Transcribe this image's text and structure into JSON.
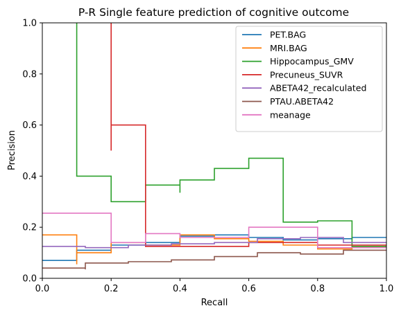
{
  "chart_data": {
    "type": "line",
    "title": "P-R Single feature prediction of cognitive outcome",
    "xlabel": "Recall",
    "ylabel": "Precision",
    "xlim": [
      0,
      1
    ],
    "ylim": [
      0,
      1
    ],
    "xticks": [
      "0.0",
      "0.2",
      "0.4",
      "0.6",
      "0.8",
      "1.0"
    ],
    "yticks": [
      "0.0",
      "0.2",
      "0.4",
      "0.6",
      "0.8",
      "1.0"
    ],
    "grid": false,
    "legend_position": "top-right",
    "drawstyle": "steps-post",
    "series": [
      {
        "name": "PET.BAG",
        "color": "#1f77b4",
        "points": [
          [
            1.0,
            0.16
          ],
          [
            0.9,
            0.16
          ],
          [
            0.9,
            0.155
          ],
          [
            0.8,
            0.155
          ],
          [
            0.8,
            0.15
          ],
          [
            0.7,
            0.15
          ],
          [
            0.7,
            0.16
          ],
          [
            0.6,
            0.16
          ],
          [
            0.6,
            0.17
          ],
          [
            0.5,
            0.17
          ],
          [
            0.5,
            0.165
          ],
          [
            0.4,
            0.165
          ],
          [
            0.4,
            0.14
          ],
          [
            0.3,
            0.14
          ],
          [
            0.3,
            0.13
          ],
          [
            0.2,
            0.13
          ],
          [
            0.2,
            0.11
          ],
          [
            0.1,
            0.11
          ],
          [
            0.1,
            0.07
          ],
          [
            0.0,
            0.07
          ]
        ]
      },
      {
        "name": "MRI.BAG",
        "color": "#ff7f0e",
        "points": [
          [
            1.0,
            0.125
          ],
          [
            0.9,
            0.125
          ],
          [
            0.9,
            0.115
          ],
          [
            0.8,
            0.115
          ],
          [
            0.8,
            0.13
          ],
          [
            0.7,
            0.13
          ],
          [
            0.7,
            0.145
          ],
          [
            0.6,
            0.145
          ],
          [
            0.6,
            0.155
          ],
          [
            0.5,
            0.155
          ],
          [
            0.5,
            0.17
          ],
          [
            0.4,
            0.17
          ],
          [
            0.4,
            0.13
          ],
          [
            0.3,
            0.13
          ],
          [
            0.3,
            0.14
          ],
          [
            0.2,
            0.14
          ],
          [
            0.2,
            0.1
          ],
          [
            0.1,
            0.1
          ],
          [
            0.1,
            0.055
          ],
          [
            0.1,
            0.17
          ],
          [
            0.0,
            0.17
          ]
        ]
      },
      {
        "name": "Hippocampus_GMV",
        "color": "#2ca02c",
        "points": [
          [
            1.0,
            0.125
          ],
          [
            0.9,
            0.125
          ],
          [
            0.9,
            0.225
          ],
          [
            0.8,
            0.225
          ],
          [
            0.8,
            0.22
          ],
          [
            0.7,
            0.22
          ],
          [
            0.7,
            0.47
          ],
          [
            0.6,
            0.47
          ],
          [
            0.6,
            0.43
          ],
          [
            0.5,
            0.43
          ],
          [
            0.5,
            0.385
          ],
          [
            0.4,
            0.385
          ],
          [
            0.4,
            0.335
          ],
          [
            0.4,
            0.365
          ],
          [
            0.3,
            0.365
          ],
          [
            0.3,
            0.3
          ],
          [
            0.2,
            0.3
          ],
          [
            0.2,
            0.4
          ],
          [
            0.1,
            0.4
          ],
          [
            0.1,
            1.0
          ]
        ]
      },
      {
        "name": "Precuneus_SUVR",
        "color": "#d62728",
        "points": [
          [
            1.0,
            0.13
          ],
          [
            0.8,
            0.13
          ],
          [
            0.8,
            0.14
          ],
          [
            0.6,
            0.14
          ],
          [
            0.6,
            0.125
          ],
          [
            0.3,
            0.125
          ],
          [
            0.3,
            0.6
          ],
          [
            0.2,
            0.6
          ],
          [
            0.2,
            0.5
          ],
          [
            0.2,
            1.0
          ]
        ]
      },
      {
        "name": "ABETA42_recalculated",
        "color": "#9467bd",
        "points": [
          [
            1.0,
            0.14
          ],
          [
            0.875,
            0.14
          ],
          [
            0.875,
            0.16
          ],
          [
            0.75,
            0.16
          ],
          [
            0.75,
            0.155
          ],
          [
            0.625,
            0.155
          ],
          [
            0.625,
            0.14
          ],
          [
            0.5,
            0.14
          ],
          [
            0.5,
            0.135
          ],
          [
            0.375,
            0.135
          ],
          [
            0.375,
            0.13
          ],
          [
            0.25,
            0.13
          ],
          [
            0.25,
            0.12
          ],
          [
            0.125,
            0.12
          ],
          [
            0.125,
            0.125
          ],
          [
            0.0,
            0.125
          ]
        ]
      },
      {
        "name": "PTAU.ABETA42",
        "color": "#8c564b",
        "points": [
          [
            1.0,
            0.11
          ],
          [
            0.875,
            0.11
          ],
          [
            0.875,
            0.095
          ],
          [
            0.75,
            0.095
          ],
          [
            0.75,
            0.1
          ],
          [
            0.625,
            0.1
          ],
          [
            0.625,
            0.085
          ],
          [
            0.5,
            0.085
          ],
          [
            0.5,
            0.072
          ],
          [
            0.375,
            0.072
          ],
          [
            0.375,
            0.065
          ],
          [
            0.25,
            0.065
          ],
          [
            0.25,
            0.06
          ],
          [
            0.125,
            0.06
          ],
          [
            0.125,
            0.035
          ],
          [
            0.125,
            0.04
          ],
          [
            0.0,
            0.04
          ]
        ]
      },
      {
        "name": "meanage",
        "color": "#e377c2",
        "points": [
          [
            1.0,
            0.12
          ],
          [
            0.8,
            0.12
          ],
          [
            0.8,
            0.2
          ],
          [
            0.6,
            0.2
          ],
          [
            0.6,
            0.16
          ],
          [
            0.4,
            0.16
          ],
          [
            0.4,
            0.175
          ],
          [
            0.3,
            0.175
          ],
          [
            0.3,
            0.14
          ],
          [
            0.2,
            0.14
          ],
          [
            0.2,
            0.255
          ],
          [
            0.0,
            0.255
          ]
        ]
      }
    ]
  }
}
